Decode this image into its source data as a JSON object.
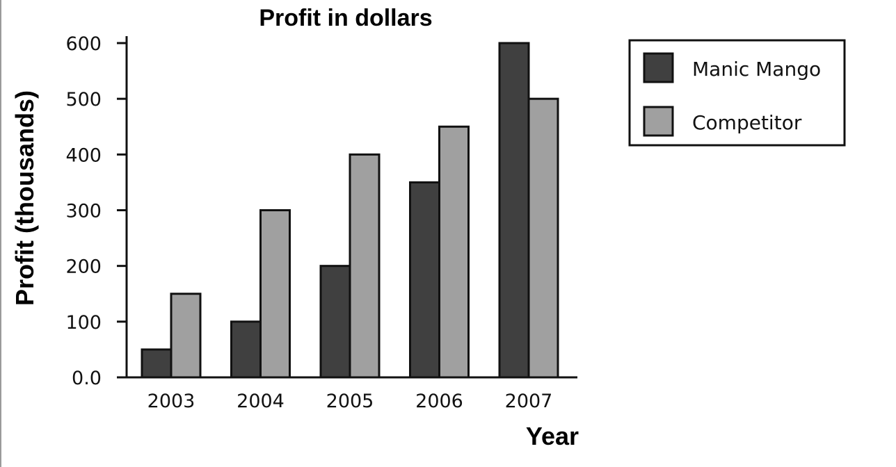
{
  "chart_data": {
    "type": "bar",
    "title": "Profit in dollars",
    "xlabel": "Year",
    "ylabel": "Profit (thousands)",
    "categories": [
      "2003",
      "2004",
      "2005",
      "2006",
      "2007"
    ],
    "series": [
      {
        "name": "Manic Mango",
        "values": [
          50,
          100,
          200,
          350,
          600
        ],
        "color": "#404040"
      },
      {
        "name": "Competitor",
        "values": [
          150,
          300,
          400,
          450,
          500
        ],
        "color": "#a0a0a0"
      }
    ],
    "ylim": [
      0,
      600
    ],
    "yticks": [
      0,
      100,
      200,
      300,
      400,
      500,
      600
    ],
    "ytick_labels": [
      "0.0",
      "100",
      "200",
      "300",
      "400",
      "500",
      "600"
    ],
    "grid": false,
    "legend_position": "top-right"
  }
}
